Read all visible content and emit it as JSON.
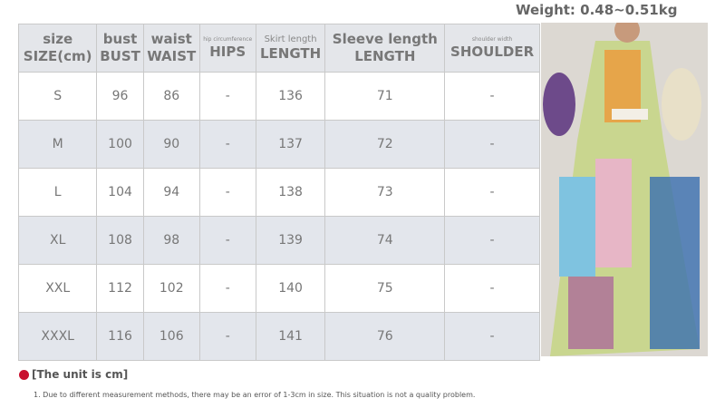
{
  "weight": "Weight: 0.48~0.51kg",
  "headers": [
    {
      "top": "size",
      "bottom": "SIZE(cm)"
    },
    {
      "top": "bust",
      "bottom": "BUST"
    },
    {
      "top": "waist",
      "bottom": "WAIST"
    },
    {
      "top": "hip circumference",
      "bottom": "HIPS"
    },
    {
      "top": "Skirt length",
      "bottom": "LENGTH"
    },
    {
      "top": "Sleeve length",
      "bottom": "LENGTH"
    },
    {
      "top": "shoulder width",
      "bottom": "SHOULDER"
    }
  ],
  "rows": [
    [
      "S",
      "96",
      "86",
      "-",
      "136",
      "71",
      "-"
    ],
    [
      "M",
      "100",
      "90",
      "-",
      "137",
      "72",
      "-"
    ],
    [
      "L",
      "104",
      "94",
      "-",
      "138",
      "73",
      "-"
    ],
    [
      "XL",
      "108",
      "98",
      "-",
      "139",
      "74",
      "-"
    ],
    [
      "XXL",
      "112",
      "102",
      "-",
      "140",
      "75",
      "-"
    ],
    [
      "XXXL",
      "116",
      "106",
      "-",
      "141",
      "76",
      "-"
    ]
  ],
  "notes": {
    "unit": "[The unit is cm]",
    "note1": "1. Due to different measurement methods, there may be an error of 1-3cm in size. This situation is not a quality problem."
  },
  "colors": {
    "bullet": "#c8102e",
    "alt_row": "#e3e6ec"
  }
}
